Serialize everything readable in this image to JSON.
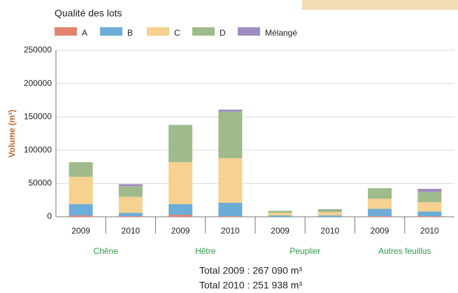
{
  "chart_data": {
    "type": "stacked_bar",
    "legend_title": "Qualité des lots",
    "y_label": "Volume (m³)",
    "categories": [
      "2009",
      "2010",
      "2009",
      "2010",
      "2009",
      "2010",
      "2009",
      "2010"
    ],
    "groups": [
      "Chêne",
      "Hêtre",
      "Peuplier",
      "Autres feuillus"
    ],
    "series": [
      {
        "name": "A",
        "color": "#e3836f",
        "values": [
          2000,
          1000,
          3000,
          1000,
          0,
          0,
          1000,
          1000
        ]
      },
      {
        "name": "B",
        "color": "#6badd6",
        "values": [
          17000,
          5000,
          16000,
          20000,
          2000,
          2000,
          11000,
          7000
        ]
      },
      {
        "name": "C",
        "color": "#f6d18f",
        "values": [
          41000,
          24000,
          63000,
          67000,
          4000,
          5000,
          15000,
          14000
        ]
      },
      {
        "name": "D",
        "color": "#9fbb8b",
        "values": [
          22000,
          16000,
          56000,
          70000,
          3000,
          4000,
          16000,
          15000
        ]
      },
      {
        "name": "Mélangé",
        "color": "#a08cc2",
        "values": [
          0,
          3000,
          0,
          3000,
          0,
          500,
          0,
          5000
        ]
      }
    ],
    "ylim": [
      0,
      250000
    ],
    "yticks": [
      0,
      50000,
      100000,
      150000,
      200000,
      250000
    ],
    "grid": true,
    "annotations": [
      "Total 2009 : 267 090 m³",
      "Total 2010 : 251 938 m³"
    ]
  }
}
